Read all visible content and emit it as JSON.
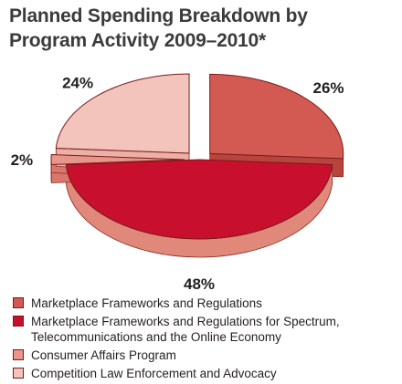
{
  "title": "Planned Spending Breakdown by Program Activity 2009–2010*",
  "chart_data": {
    "type": "pie",
    "slices": [
      {
        "label": "Marketplace Frameworks and Regulations",
        "value": 26,
        "display": "26%",
        "color": "#d35a52",
        "side": "#b8443e",
        "exploded": true
      },
      {
        "label": "Marketplace Frameworks and Regulations for Spectrum, Telecommunications and the Online Economy",
        "value": 48,
        "display": "48%",
        "color": "#c8102e",
        "side": "#e0887a",
        "exploded": false
      },
      {
        "label": "Consumer Affairs Program",
        "value": 2,
        "display": "2%",
        "color": "#e8958a",
        "side": "#d9776c",
        "exploded": true
      },
      {
        "label": "Competition Law Enforcement and Advocacy",
        "value": 24,
        "display": "24%",
        "color": "#f2c4bc",
        "side": "#ebb0a6",
        "exploded": true
      }
    ]
  },
  "legend": [
    {
      "label": "Marketplace Frameworks and Regulations",
      "color": "#d35a52"
    },
    {
      "label": "Marketplace Frameworks and Regulations for Spectrum, Telecommunications and the Online Economy",
      "color": "#c8102e"
    },
    {
      "label": "Consumer Affairs Program",
      "color": "#e8958a"
    },
    {
      "label": "Competition Law Enforcement and Advocacy",
      "color": "#f2c4bc"
    }
  ]
}
